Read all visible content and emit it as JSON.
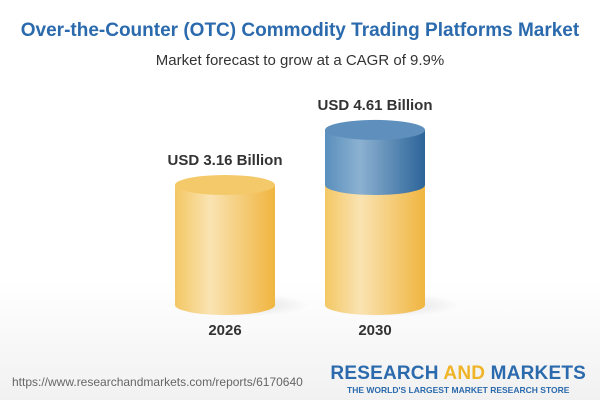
{
  "title": "Over-the-Counter (OTC) Commodity Trading Platforms Market",
  "subtitle": "Market forecast to grow at a CAGR of 9.9%",
  "chart_data": {
    "type": "bar",
    "style": "3d-cylinder",
    "categories": [
      "2026",
      "2030"
    ],
    "values": [
      3.16,
      4.61
    ],
    "data_labels": [
      "USD 3.16 Billion",
      "USD 4.61 Billion"
    ],
    "unit": "USD Billion",
    "colors": {
      "base": "#f3c45e",
      "growth": "#4f86b6"
    }
  },
  "footer": {
    "url": "https://www.researchandmarkets.com/reports/6170640",
    "logo_part1": "RESEARCH ",
    "logo_part2": "AND",
    "logo_part3": " MARKETS",
    "tagline": "THE WORLD'S LARGEST MARKET RESEARCH STORE"
  }
}
